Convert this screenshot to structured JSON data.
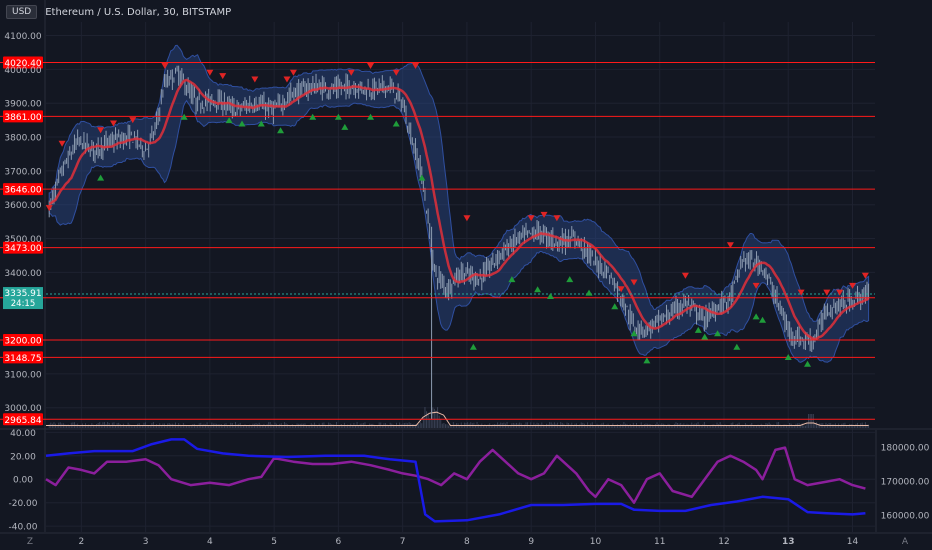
{
  "header": {
    "currency_badge": "USD",
    "symbol_title": "Ethereum / U.S. Dollar, 30, BITSTAMP"
  },
  "colors": {
    "background": "#131722",
    "level_line": "#ff1a1a",
    "level_label_bg": "#ff0000",
    "band_fill": "#2a4a8a",
    "moving_average": "#e0303a",
    "price_bars": "#8c9bb0",
    "sell_marker": "#e02424",
    "buy_marker": "#1f9d3a",
    "oscillator_purple": "#8b1f9c",
    "oscillator_blue": "#1a1ae6",
    "current_price_bg": "#26a69a",
    "axis_text": "#b2b5be"
  },
  "chart_data": [
    {
      "type": "candlestick",
      "name": "main",
      "title": "",
      "x_ticks": [
        "2",
        "3",
        "4",
        "5",
        "6",
        "7",
        "8",
        "9",
        "10",
        "11",
        "12",
        "13",
        "14"
      ],
      "x_range": [
        1.45,
        14.35
      ],
      "y_range": [
        2940,
        4140
      ],
      "y_ticks": [
        "3000.00",
        "3100.00",
        "3400.00",
        "3500.00",
        "3600.00",
        "3700.00",
        "3800.00",
        "3900.00",
        "4000.00",
        "4100.00"
      ],
      "levels": [
        {
          "value": 4020.4,
          "label": "4020.40"
        },
        {
          "value": 3861.0,
          "label": "3861.00"
        },
        {
          "value": 3646.0,
          "label": "3646.00"
        },
        {
          "value": 3473.0,
          "label": "3473.00"
        },
        {
          "value": 3324.9,
          "label": "3324.90"
        },
        {
          "value": 3200.0,
          "label": "3200.00"
        },
        {
          "value": 3148.75,
          "label": "3148.75"
        },
        {
          "value": 2965.84,
          "label": "2965.84"
        }
      ],
      "current_price": {
        "value": 3335.91,
        "label": "3335.91",
        "countdown": "24:15"
      },
      "price_path": [
        [
          1.45,
          3560
        ],
        [
          1.7,
          3700
        ],
        [
          1.95,
          3790
        ],
        [
          2.2,
          3760
        ],
        [
          2.5,
          3790
        ],
        [
          2.8,
          3800
        ],
        [
          3.0,
          3760
        ],
        [
          3.15,
          3820
        ],
        [
          3.3,
          3960
        ],
        [
          3.5,
          3990
        ],
        [
          3.8,
          3900
        ],
        [
          4.1,
          3910
        ],
        [
          4.4,
          3880
        ],
        [
          4.7,
          3900
        ],
        [
          5.0,
          3880
        ],
        [
          5.3,
          3930
        ],
        [
          5.6,
          3950
        ],
        [
          5.9,
          3940
        ],
        [
          6.2,
          3950
        ],
        [
          6.5,
          3940
        ],
        [
          6.8,
          3950
        ],
        [
          7.0,
          3900
        ],
        [
          7.15,
          3790
        ],
        [
          7.3,
          3690
        ],
        [
          7.4,
          3550
        ],
        [
          7.5,
          3400
        ],
        [
          7.7,
          3350
        ],
        [
          7.9,
          3400
        ],
        [
          8.2,
          3380
        ],
        [
          8.5,
          3450
        ],
        [
          8.8,
          3500
        ],
        [
          9.1,
          3520
        ],
        [
          9.4,
          3490
        ],
        [
          9.7,
          3500
        ],
        [
          10.0,
          3430
        ],
        [
          10.2,
          3400
        ],
        [
          10.4,
          3330
        ],
        [
          10.6,
          3240
        ],
        [
          10.8,
          3230
        ],
        [
          11.1,
          3270
        ],
        [
          11.4,
          3310
        ],
        [
          11.7,
          3260
        ],
        [
          11.9,
          3300
        ],
        [
          12.1,
          3320
        ],
        [
          12.3,
          3440
        ],
        [
          12.6,
          3420
        ],
        [
          12.8,
          3330
        ],
        [
          13.0,
          3230
        ],
        [
          13.2,
          3200
        ],
        [
          13.4,
          3200
        ],
        [
          13.6,
          3290
        ],
        [
          13.9,
          3310
        ],
        [
          14.2,
          3335
        ]
      ],
      "spikes": [
        [
          7.45,
          2965
        ]
      ],
      "sell_markers": [
        [
          1.5,
          3590
        ],
        [
          1.7,
          3780
        ],
        [
          2.3,
          3820
        ],
        [
          2.5,
          3840
        ],
        [
          2.8,
          3850
        ],
        [
          3.3,
          4010
        ],
        [
          4.0,
          3990
        ],
        [
          4.2,
          3980
        ],
        [
          4.7,
          3970
        ],
        [
          5.2,
          3970
        ],
        [
          5.3,
          3990
        ],
        [
          6.2,
          3990
        ],
        [
          6.5,
          4010
        ],
        [
          6.9,
          3990
        ],
        [
          7.2,
          4010
        ],
        [
          8.0,
          3560
        ],
        [
          9.0,
          3560
        ],
        [
          9.2,
          3570
        ],
        [
          9.4,
          3560
        ],
        [
          10.4,
          3350
        ],
        [
          10.6,
          3370
        ],
        [
          11.4,
          3390
        ],
        [
          12.1,
          3480
        ],
        [
          12.5,
          3360
        ],
        [
          13.2,
          3340
        ],
        [
          13.6,
          3340
        ],
        [
          13.8,
          3340
        ],
        [
          14.0,
          3360
        ],
        [
          14.2,
          3390
        ]
      ],
      "buy_markers": [
        [
          2.3,
          3680
        ],
        [
          3.6,
          3860
        ],
        [
          4.3,
          3850
        ],
        [
          4.5,
          3840
        ],
        [
          4.8,
          3840
        ],
        [
          5.1,
          3820
        ],
        [
          5.6,
          3860
        ],
        [
          6.0,
          3860
        ],
        [
          6.1,
          3830
        ],
        [
          6.5,
          3860
        ],
        [
          6.9,
          3840
        ],
        [
          7.3,
          3680
        ],
        [
          8.1,
          3180
        ],
        [
          8.7,
          3380
        ],
        [
          9.1,
          3350
        ],
        [
          9.3,
          3330
        ],
        [
          9.6,
          3380
        ],
        [
          9.9,
          3340
        ],
        [
          10.3,
          3300
        ],
        [
          10.6,
          3220
        ],
        [
          10.8,
          3140
        ],
        [
          11.6,
          3230
        ],
        [
          11.7,
          3210
        ],
        [
          11.9,
          3220
        ],
        [
          12.2,
          3180
        ],
        [
          12.5,
          3270
        ],
        [
          12.6,
          3260
        ],
        [
          13.0,
          3150
        ],
        [
          13.3,
          3130
        ]
      ]
    },
    {
      "type": "line",
      "name": "oscillator",
      "title": "",
      "x_range": [
        1.45,
        14.35
      ],
      "y_range": [
        -45,
        42
      ],
      "y_ticks_left": [
        "40.00",
        "20.00",
        "0.00",
        "-20.00",
        "-40.00"
      ],
      "y_ticks_right": [
        "180000.00",
        "170000.00",
        "160000.00"
      ],
      "series": [
        {
          "color": "purple",
          "values": [
            [
              1.45,
              0
            ],
            [
              1.6,
              -5
            ],
            [
              1.8,
              10
            ],
            [
              2.0,
              8
            ],
            [
              2.2,
              5
            ],
            [
              2.4,
              15
            ],
            [
              2.7,
              15
            ],
            [
              3.0,
              17
            ],
            [
              3.2,
              12
            ],
            [
              3.4,
              0
            ],
            [
              3.7,
              -5
            ],
            [
              4.0,
              -3
            ],
            [
              4.3,
              -5
            ],
            [
              4.6,
              0
            ],
            [
              4.8,
              2
            ],
            [
              5.0,
              18
            ],
            [
              5.3,
              15
            ],
            [
              5.6,
              13
            ],
            [
              5.9,
              13
            ],
            [
              6.2,
              15
            ],
            [
              6.5,
              12
            ],
            [
              6.8,
              8
            ],
            [
              7.0,
              5
            ],
            [
              7.2,
              3
            ],
            [
              7.4,
              0
            ],
            [
              7.6,
              -5
            ],
            [
              7.8,
              5
            ],
            [
              8.0,
              0
            ],
            [
              8.2,
              15
            ],
            [
              8.4,
              25
            ],
            [
              8.6,
              15
            ],
            [
              8.8,
              5
            ],
            [
              9.0,
              0
            ],
            [
              9.2,
              5
            ],
            [
              9.4,
              20
            ],
            [
              9.7,
              5
            ],
            [
              9.9,
              -10
            ],
            [
              10.0,
              -15
            ],
            [
              10.2,
              0
            ],
            [
              10.4,
              -5
            ],
            [
              10.6,
              -20
            ],
            [
              10.8,
              0
            ],
            [
              11.0,
              5
            ],
            [
              11.2,
              -10
            ],
            [
              11.5,
              -15
            ],
            [
              11.7,
              0
            ],
            [
              11.9,
              15
            ],
            [
              12.1,
              20
            ],
            [
              12.3,
              15
            ],
            [
              12.5,
              8
            ],
            [
              12.6,
              0
            ],
            [
              12.8,
              25
            ],
            [
              12.95,
              27
            ],
            [
              13.1,
              0
            ],
            [
              13.3,
              -5
            ],
            [
              13.6,
              -2
            ],
            [
              13.8,
              0
            ],
            [
              14.0,
              -5
            ],
            [
              14.2,
              -8
            ]
          ]
        },
        {
          "color": "blue",
          "values": [
            [
              1.45,
              20
            ],
            [
              1.8,
              22
            ],
            [
              2.2,
              24
            ],
            [
              2.8,
              24
            ],
            [
              3.1,
              30
            ],
            [
              3.4,
              34
            ],
            [
              3.6,
              34
            ],
            [
              3.8,
              26
            ],
            [
              4.2,
              22
            ],
            [
              4.6,
              20
            ],
            [
              5.2,
              19
            ],
            [
              5.8,
              20
            ],
            [
              6.4,
              20
            ],
            [
              6.8,
              17
            ],
            [
              7.0,
              16
            ],
            [
              7.2,
              15
            ],
            [
              7.35,
              -30
            ],
            [
              7.5,
              -36
            ],
            [
              8.0,
              -35
            ],
            [
              8.5,
              -30
            ],
            [
              9.0,
              -22
            ],
            [
              9.5,
              -22
            ],
            [
              10.0,
              -21
            ],
            [
              10.4,
              -21
            ],
            [
              10.6,
              -26
            ],
            [
              11.0,
              -27
            ],
            [
              11.4,
              -27
            ],
            [
              11.8,
              -22
            ],
            [
              12.2,
              -19
            ],
            [
              12.6,
              -15
            ],
            [
              13.0,
              -17
            ],
            [
              13.3,
              -28
            ],
            [
              13.6,
              -29
            ],
            [
              14.0,
              -30
            ],
            [
              14.2,
              -29
            ]
          ]
        }
      ]
    }
  ],
  "x_axis": {
    "ticks": [
      "2",
      "3",
      "4",
      "5",
      "6",
      "7",
      "8",
      "9",
      "10",
      "11",
      "12",
      "13",
      "14"
    ],
    "bold_tick": "13"
  },
  "corner_labels": {
    "left": "Z",
    "right": "A"
  }
}
